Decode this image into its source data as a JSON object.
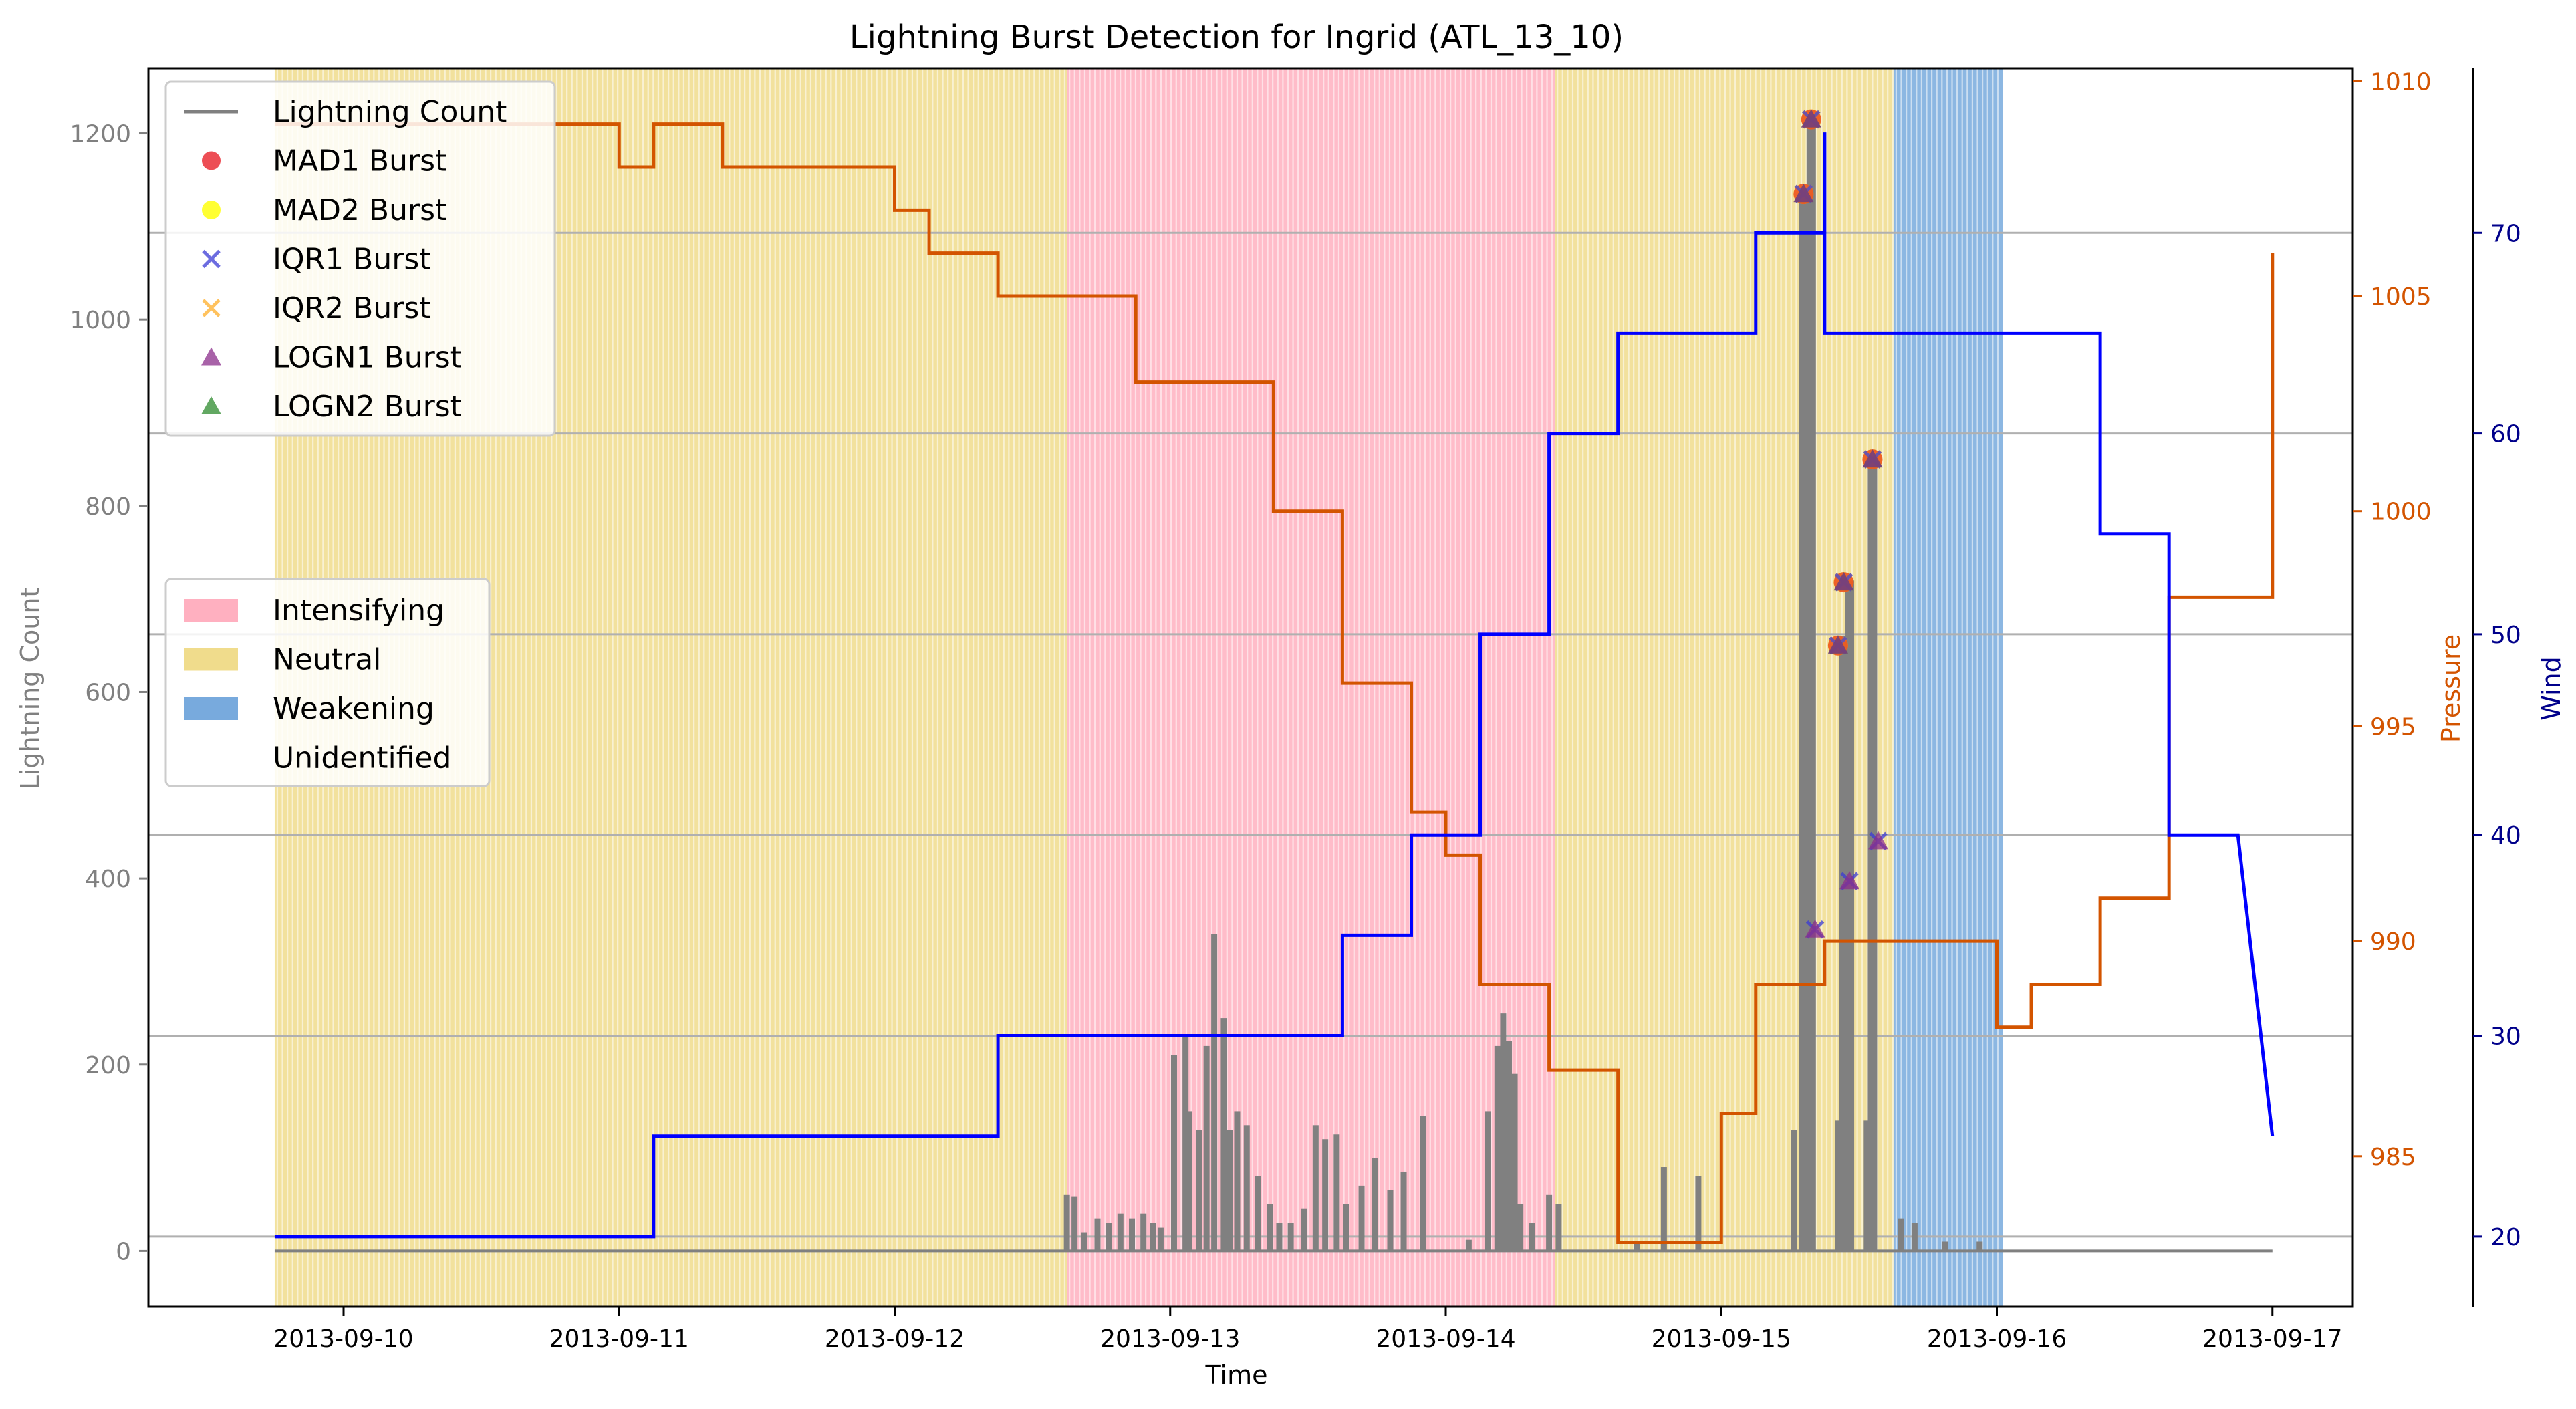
{
  "chart_data": {
    "type": "line",
    "title": "Lightning Burst Detection for Ingrid (ATL_13_10)",
    "xlabel": "Time",
    "ylabel": "Lightning Count",
    "ylabel_right1": "Pressure",
    "ylabel_right2": "Wind",
    "xlim": [
      "2013-09-09T07:00",
      "2013-09-17T07:00"
    ],
    "ylim": [
      -60,
      1270
    ],
    "ylim_pressure": [
      981.5,
      1010.3
    ],
    "ylim_wind": [
      16.5,
      78.2
    ],
    "x_ticks": [
      "2013-09-10",
      "2013-09-11",
      "2013-09-12",
      "2013-09-13",
      "2013-09-14",
      "2013-09-15",
      "2013-09-16",
      "2013-09-17"
    ],
    "y_ticks": [
      0,
      200,
      400,
      600,
      800,
      1000,
      1200
    ],
    "pressure_ticks": [
      985,
      990,
      995,
      1000,
      1005,
      1010
    ],
    "wind_ticks": [
      20,
      30,
      40,
      50,
      60,
      70
    ],
    "grid": "horizontal lines at wind ticks",
    "colors": {
      "lightning": "#808080",
      "pressure": "#d35400",
      "wind": "#0000ff",
      "intensifying": "#ffb0c0",
      "neutral": "#f0dc8c",
      "weakening": "#78aadd",
      "grid": "#b0b0b0",
      "wind_axis": "#00008b"
    },
    "phases": [
      {
        "name": "Neutral",
        "start": "2013-09-09T18:00",
        "end": "2013-09-12T15:00"
      },
      {
        "name": "Intensifying",
        "start": "2013-09-12T15:00",
        "end": "2013-09-14T09:30"
      },
      {
        "name": "Neutral",
        "start": "2013-09-14T09:30",
        "end": "2013-09-15T15:00"
      },
      {
        "name": "Weakening",
        "start": "2013-09-15T15:00",
        "end": "2013-09-16T00:30"
      }
    ],
    "lightning_series": {
      "name": "Lightning Count",
      "x": [
        "2013-09-12T15:00",
        "2013-09-12T15:40",
        "2013-09-12T16:30",
        "2013-09-12T17:40",
        "2013-09-12T18:40",
        "2013-09-12T19:40",
        "2013-09-12T20:40",
        "2013-09-12T21:40",
        "2013-09-12T22:30",
        "2013-09-12T23:10",
        "2013-09-13T00:20",
        "2013-09-13T01:20",
        "2013-09-13T01:40",
        "2013-09-13T02:30",
        "2013-09-13T03:10",
        "2013-09-13T03:50",
        "2013-09-13T04:40",
        "2013-09-13T05:10",
        "2013-09-13T05:50",
        "2013-09-13T06:40",
        "2013-09-13T07:40",
        "2013-09-13T08:40",
        "2013-09-13T09:30",
        "2013-09-13T10:30",
        "2013-09-13T11:40",
        "2013-09-13T12:40",
        "2013-09-13T13:30",
        "2013-09-13T14:30",
        "2013-09-13T15:20",
        "2013-09-13T16:40",
        "2013-09-13T17:50",
        "2013-09-13T19:10",
        "2013-09-13T20:20",
        "2013-09-13T22:00",
        "2013-09-14T02:00",
        "2013-09-14T03:40",
        "2013-09-14T04:30",
        "2013-09-14T05:00",
        "2013-09-14T05:30",
        "2013-09-14T06:00",
        "2013-09-14T06:30",
        "2013-09-14T07:30",
        "2013-09-14T09:00",
        "2013-09-14T09:50",
        "2013-09-14T16:40",
        "2013-09-14T19:00",
        "2013-09-14T22:00",
        "2013-09-15T06:20",
        "2013-09-15T07:10",
        "2013-09-15T07:50",
        "2013-09-15T10:10",
        "2013-09-15T10:40",
        "2013-09-15T11:10",
        "2013-09-15T12:40",
        "2013-09-15T13:10",
        "2013-09-15T15:40",
        "2013-09-15T16:50",
        "2013-09-15T19:30",
        "2013-09-15T22:30"
      ],
      "values": [
        60,
        58,
        20,
        35,
        30,
        40,
        35,
        40,
        30,
        25,
        210,
        230,
        150,
        130,
        220,
        340,
        250,
        130,
        150,
        135,
        80,
        50,
        30,
        30,
        45,
        135,
        120,
        125,
        50,
        70,
        100,
        65,
        85,
        145,
        12,
        150,
        220,
        255,
        225,
        190,
        50,
        30,
        60,
        50,
        10,
        90,
        80,
        130,
        1140,
        1220,
        140,
        660,
        720,
        140,
        850,
        35,
        30,
        10,
        10
      ]
    },
    "wind_series": {
      "name": "Wind",
      "x": [
        "2013-09-09T18:00",
        "2013-09-11T03:00",
        "2013-09-11T03:00",
        "2013-09-12T09:00",
        "2013-09-12T09:00",
        "2013-09-13T09:00",
        "2013-09-13T09:00",
        "2013-09-13T15:00",
        "2013-09-13T15:00",
        "2013-09-13T21:00",
        "2013-09-13T21:00",
        "2013-09-14T03:00",
        "2013-09-14T03:00",
        "2013-09-14T09:00",
        "2013-09-14T09:00",
        "2013-09-14T15:00",
        "2013-09-14T15:00",
        "2013-09-14T21:00",
        "2013-09-14T21:00",
        "2013-09-15T03:00",
        "2013-09-15T03:00",
        "2013-09-15T09:00",
        "2013-09-15T09:00",
        "2013-09-15T09:00",
        "2013-09-15T09:00",
        "2013-09-15T09:00",
        "2013-09-16T09:00",
        "2013-09-16T09:00",
        "2013-09-16T15:00",
        "2013-09-16T15:00",
        "2013-09-16T21:00",
        "2013-09-16T21:00",
        "2013-09-17T00:00"
      ],
      "values": [
        20,
        20,
        25,
        25,
        30,
        30,
        30,
        30,
        35,
        35,
        40,
        40,
        50,
        50,
        60,
        60,
        65,
        65,
        65,
        65,
        70,
        70,
        75,
        75,
        65,
        65,
        65,
        55,
        55,
        40,
        40,
        40,
        25
      ]
    },
    "pressure_series": {
      "name": "Pressure",
      "x": [
        "2013-09-09T18:00",
        "2013-09-11T00:00",
        "2013-09-11T00:00",
        "2013-09-11T03:00",
        "2013-09-11T03:00",
        "2013-09-11T09:00",
        "2013-09-11T09:00",
        "2013-09-12T00:00",
        "2013-09-12T00:00",
        "2013-09-12T03:00",
        "2013-09-12T03:00",
        "2013-09-12T09:00",
        "2013-09-12T09:00",
        "2013-09-12T15:00",
        "2013-09-12T15:00",
        "2013-09-12T21:00",
        "2013-09-12T21:00",
        "2013-09-13T09:00",
        "2013-09-13T09:00",
        "2013-09-13T15:00",
        "2013-09-13T15:00",
        "2013-09-13T21:00",
        "2013-09-13T21:00",
        "2013-09-14T00:00",
        "2013-09-14T00:00",
        "2013-09-14T03:00",
        "2013-09-14T03:00",
        "2013-09-14T09:00",
        "2013-09-14T09:00",
        "2013-09-14T15:00",
        "2013-09-14T15:00",
        "2013-09-15T00:00",
        "2013-09-15T00:00",
        "2013-09-15T03:00",
        "2013-09-15T03:00",
        "2013-09-15T09:00",
        "2013-09-15T09:00",
        "2013-09-15T15:00",
        "2013-09-15T15:00",
        "2013-09-16T00:00",
        "2013-09-16T00:00",
        "2013-09-16T03:00",
        "2013-09-16T03:00",
        "2013-09-16T09:00",
        "2013-09-16T09:00",
        "2013-09-16T15:00",
        "2013-09-16T15:00",
        "2013-09-16T18:00",
        "2013-09-16T18:00",
        "2013-09-17T00:00",
        "2013-09-17T00:00"
      ],
      "values": [
        1009,
        1009,
        1008,
        1008,
        1009,
        1009,
        1008,
        1008,
        1007,
        1007,
        1006,
        1006,
        1005,
        1005,
        1005,
        1005,
        1003,
        1003,
        1000,
        1000,
        996,
        996,
        993,
        993,
        992,
        992,
        989,
        989,
        987,
        987,
        983,
        983,
        986,
        986,
        989,
        989,
        990,
        990,
        990,
        990,
        988,
        988,
        989,
        989,
        991,
        991,
        998,
        998,
        998,
        998,
        1006
      ]
    },
    "bursts": {
      "mad": [
        {
          "x": "2013-09-15T07:10",
          "y": 1135
        },
        {
          "x": "2013-09-15T07:50",
          "y": 1215
        },
        {
          "x": "2013-09-15T10:10",
          "y": 650
        },
        {
          "x": "2013-09-15T10:40",
          "y": 718
        },
        {
          "x": "2013-09-15T13:10",
          "y": 850
        }
      ],
      "logn_low": [
        {
          "x": "2013-09-15T08:10",
          "y": 345
        },
        {
          "x": "2013-09-15T11:10",
          "y": 397
        },
        {
          "x": "2013-09-15T13:40",
          "y": 440
        }
      ]
    },
    "legend_top": [
      {
        "label": "Lightning Count",
        "marker": "line",
        "color": "#808080"
      },
      {
        "label": "MAD1 Burst",
        "marker": "circle",
        "color": "#e8222a"
      },
      {
        "label": "MAD2 Burst",
        "marker": "circle",
        "color": "#ffff00"
      },
      {
        "label": "IQR1 Burst",
        "marker": "x",
        "color": "#3b3bd6"
      },
      {
        "label": "IQR2 Burst",
        "marker": "x",
        "color": "#ffae28"
      },
      {
        "label": "LOGN1 Burst",
        "marker": "triangle",
        "color": "#8b2d8b"
      },
      {
        "label": "LOGN2 Burst",
        "marker": "triangle",
        "color": "#2e8b2e"
      }
    ],
    "legend_bottom": [
      {
        "label": "Intensifying",
        "color": "#ffb0c0"
      },
      {
        "label": "Neutral",
        "color": "#f0dc8c"
      },
      {
        "label": "Weakening",
        "color": "#78aadd"
      },
      {
        "label": "Unidentified",
        "color": "#ffffff"
      }
    ],
    "legend_top_placement": "upper-left",
    "legend_bottom_placement": "center-left"
  }
}
